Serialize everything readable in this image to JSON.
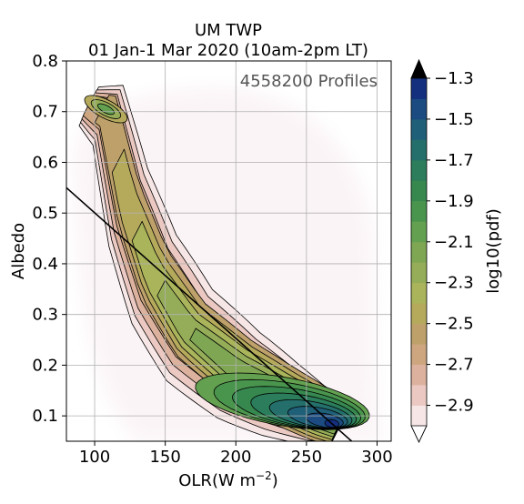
{
  "chart_data": {
    "type": "heatmap",
    "title_line1": "UM TWP",
    "title_line2": "01 Jan-1 Mar 2020 (10am-2pm LT)",
    "annotation": "4558200 Profiles",
    "xlabel": "OLR(W m",
    "xlabel_sup": "−2",
    "xlabel_close": ")",
    "ylabel": "Albedo",
    "xlim": [
      80,
      310
    ],
    "ylim": [
      0.05,
      0.8
    ],
    "x_ticks": [
      100,
      150,
      200,
      250,
      300
    ],
    "x_tick_labels": [
      "100",
      "150",
      "200",
      "250",
      "300"
    ],
    "y_ticks": [
      0.1,
      0.2,
      0.3,
      0.4,
      0.5,
      0.6,
      0.7,
      0.8
    ],
    "y_tick_labels": [
      "0.1",
      "0.2",
      "0.3",
      "0.4",
      "0.5",
      "0.6",
      "0.7",
      "0.8"
    ],
    "grid": true,
    "reference_line": {
      "from": [
        80,
        0.55
      ],
      "to": [
        282,
        0.05
      ]
    },
    "colorbar": {
      "label": "log10(pdf)",
      "range": [
        -3.0,
        -1.3
      ],
      "tick_values": [
        -2.9,
        -2.7,
        -2.5,
        -2.3,
        -2.1,
        -1.9,
        -1.7,
        -1.5,
        -1.3
      ],
      "tick_labels": [
        "−2.9",
        "−2.7",
        "−2.5",
        "−2.3",
        "−2.1",
        "−1.9",
        "−1.7",
        "−1.5",
        "−1.3"
      ],
      "extend": "both",
      "levels": [
        -3.0,
        -2.9,
        -2.8,
        -2.7,
        -2.6,
        -2.5,
        -2.4,
        -2.3,
        -2.2,
        -2.1,
        -2.0,
        -1.9,
        -1.8,
        -1.7,
        -1.6,
        -1.5,
        -1.4,
        -1.3
      ],
      "colors": [
        "#f6e7e6",
        "#ebc9c2",
        "#dcb29e",
        "#cda680",
        "#bea16a",
        "#b5aa5c",
        "#a9b45b",
        "#95ad58",
        "#7ea653",
        "#63a050",
        "#4a954e",
        "#36884f",
        "#2b7d5c",
        "#246f6b",
        "#1f5f78",
        "#1b4b80",
        "#152f7f"
      ],
      "under_color": "#ffffff",
      "over_color": "#000000"
    },
    "density_ridge": [
      [
        95,
        0.715
      ],
      [
        108,
        0.7
      ],
      [
        122,
        0.52
      ],
      [
        140,
        0.38
      ],
      [
        165,
        0.27
      ],
      [
        200,
        0.19
      ],
      [
        230,
        0.14
      ],
      [
        258,
        0.1
      ],
      [
        272,
        0.08
      ]
    ],
    "density_peak": {
      "x": 268,
      "y": 0.085
    },
    "secondary_peak": {
      "x": 108,
      "y": 0.705
    }
  }
}
